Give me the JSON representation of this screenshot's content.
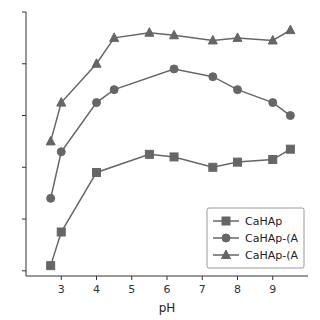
{
  "chart_data": {
    "type": "line",
    "xlabel": "pH",
    "color": "#666666",
    "series": [
      {
        "name": "CaHAp",
        "marker": "square",
        "x": [
          2.7,
          3.0,
          4.0,
          5.5,
          6.2,
          7.3,
          8.0,
          9.0,
          9.5
        ],
        "values": [
          2,
          15,
          38,
          45,
          44,
          40,
          42,
          43,
          47
        ]
      },
      {
        "name": "CaHAp-(A",
        "marker": "circle",
        "x": [
          2.7,
          3.0,
          4.0,
          4.5,
          6.2,
          7.3,
          8.0,
          9.0,
          9.5
        ],
        "values": [
          28,
          46,
          65,
          70,
          78,
          75,
          70,
          65,
          60
        ]
      },
      {
        "name": "CaHAp-(A",
        "marker": "triangle",
        "x": [
          2.7,
          3.0,
          4.0,
          4.5,
          5.5,
          6.2,
          7.3,
          8.0,
          9.0,
          9.5
        ],
        "values": [
          50,
          65,
          80,
          90,
          92,
          91,
          89,
          90,
          89,
          93
        ]
      }
    ],
    "xlim": [
      2.0,
      10.0
    ],
    "xticks": [
      3,
      4,
      5,
      6,
      7,
      8,
      9
    ],
    "ylim": [
      -2,
      100
    ],
    "yticks": [
      0,
      20,
      40,
      60,
      80,
      100
    ],
    "tick_labels": "x",
    "legend": "lower right"
  }
}
